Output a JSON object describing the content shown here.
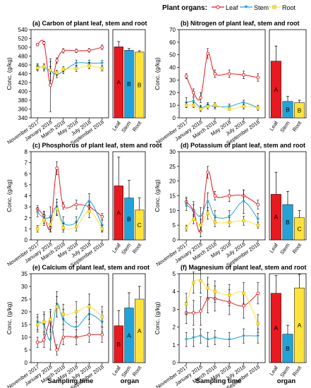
{
  "legend": {
    "title": "Plant organs:",
    "items": [
      {
        "label": "Leaf",
        "color": "#e8191f",
        "marker": "circle"
      },
      {
        "label": "Stem",
        "color": "#21a3d8",
        "marker": "triangle-down"
      },
      {
        "label": "Root",
        "color": "#ffe33a",
        "marker": "square"
      }
    ]
  },
  "colors": {
    "leaf": "#e8191f",
    "stem": "#21a3d8",
    "root": "#ffe33a"
  },
  "shared": {
    "ylabel": "Conc. (g/kg)",
    "dates": [
      "November 2017",
      "January 2018",
      "March 2018",
      "May 2018",
      "July 2018",
      "September 2018"
    ],
    "organs": [
      "Leaf",
      "Stem",
      "Root"
    ],
    "x_months": [
      1,
      2,
      3,
      4,
      5,
      7,
      9,
      11
    ]
  },
  "footer": {
    "left_label": "Sampling time",
    "right_label": "organ"
  },
  "chart_data": [
    {
      "type": "line",
      "title": "(a) Carbon of plant leaf, stem and root",
      "ylim": [
        340,
        540
      ],
      "yticks": [
        340,
        360,
        380,
        400,
        420,
        440,
        460,
        480,
        500,
        520,
        540
      ],
      "series": [
        {
          "name": "Leaf",
          "y": [
            506,
            510,
            414,
            470,
            492,
            492,
            493,
            500
          ],
          "err": [
            3,
            4,
            60,
            6,
            5,
            4,
            4,
            5
          ]
        },
        {
          "name": "Stem",
          "y": [
            456,
            454,
            446,
            438,
            446,
            464,
            464,
            464
          ],
          "err": [
            7,
            8,
            22,
            7,
            6,
            7,
            7,
            6
          ]
        },
        {
          "name": "Root",
          "y": [
            453,
            456,
            448,
            442,
            450,
            452,
            458,
            452
          ],
          "err": [
            7,
            6,
            8,
            6,
            6,
            7,
            7,
            6
          ]
        }
      ],
      "bars": {
        "values": [
          501,
          493,
          489
        ],
        "err": [
          12,
          4,
          3
        ],
        "letters": [
          "A",
          "B",
          "B"
        ]
      }
    },
    {
      "type": "line",
      "title": "(b) Nitrogen of plant leaf, stem and root",
      "ylim": [
        0,
        70
      ],
      "yticks": [
        0,
        10,
        20,
        30,
        40,
        50,
        60,
        70
      ],
      "series": [
        {
          "name": "Leaf",
          "y": [
            33,
            20,
            16,
            51,
            35,
            35,
            34,
            32
          ],
          "err": [
            2,
            3,
            4,
            4,
            3,
            3,
            3,
            3
          ]
        },
        {
          "name": "Stem",
          "y": [
            12,
            13,
            8,
            10,
            9,
            9,
            12,
            8
          ],
          "err": [
            4,
            3,
            2,
            2,
            2,
            2,
            2,
            2
          ]
        },
        {
          "name": "Root",
          "y": [
            10,
            10,
            7,
            9,
            10,
            7,
            9,
            8
          ],
          "err": [
            2,
            2,
            2,
            2,
            2,
            1,
            2,
            1
          ]
        }
      ],
      "bars": {
        "values": [
          45,
          13,
          12
        ],
        "err": [
          12,
          4,
          2
        ],
        "letters": [
          "A",
          "B",
          "B"
        ]
      }
    },
    {
      "type": "line",
      "title": "(c) Phosphorus of plant leaf, stem and root",
      "ylim": [
        0,
        8
      ],
      "yticks": [
        0,
        1,
        2,
        3,
        4,
        5,
        6,
        7,
        8
      ],
      "series": [
        {
          "name": "Leaf",
          "y": [
            2.8,
            2.2,
            1.1,
            6.5,
            3.1,
            3.2,
            3.0,
            2.1
          ],
          "err": [
            0.3,
            0.4,
            0.4,
            0.6,
            0.3,
            0.4,
            0.4,
            0.3
          ]
        },
        {
          "name": "Stem",
          "y": [
            2.5,
            2.0,
            2.1,
            3.0,
            1.5,
            1.6,
            3.5,
            1.3
          ],
          "err": [
            0.4,
            0.5,
            0.9,
            0.7,
            0.6,
            0.5,
            0.7,
            0.5
          ]
        },
        {
          "name": "Root",
          "y": [
            1.0,
            1.8,
            1.4,
            2.8,
            1.1,
            1.2,
            2.6,
            1.0
          ],
          "err": [
            0.3,
            0.5,
            0.6,
            0.6,
            0.4,
            0.4,
            0.6,
            0.3
          ]
        }
      ],
      "bars": {
        "values": [
          4.9,
          3.8,
          2.7
        ],
        "err": [
          2.6,
          1.6,
          1.1
        ],
        "letters": [
          "A",
          "B",
          "C"
        ]
      }
    },
    {
      "type": "line",
      "title": "(d) Potassium of plant leaf, stem and root",
      "ylim": [
        0,
        30
      ],
      "yticks": [
        0,
        5,
        10,
        15,
        20,
        25,
        30
      ],
      "series": [
        {
          "name": "Leaf",
          "y": [
            13,
            10,
            3,
            23,
            15,
            15,
            15,
            12
          ],
          "err": [
            1.5,
            2,
            2,
            2,
            1.5,
            2,
            2,
            1.5
          ]
        },
        {
          "name": "Stem",
          "y": [
            12,
            10,
            8,
            13,
            8,
            8,
            13,
            7
          ],
          "err": [
            2,
            3,
            3,
            3,
            2,
            2,
            4,
            2
          ]
        },
        {
          "name": "Root",
          "y": [
            4,
            7,
            5,
            9,
            6,
            6,
            6.5,
            5
          ],
          "err": [
            1,
            1.5,
            2,
            2,
            1.5,
            1.5,
            1.5,
            1
          ]
        }
      ],
      "bars": {
        "values": [
          15.5,
          12,
          7.5
        ],
        "err": [
          7.5,
          4.5,
          2.5
        ],
        "letters": [
          "A",
          "B",
          "C"
        ]
      }
    },
    {
      "type": "line",
      "title": "(e) Calcium of plant leaf, stem and root",
      "ylim": [
        0,
        35
      ],
      "yticks": [
        0,
        5,
        10,
        15,
        20,
        25,
        30,
        35
      ],
      "series": [
        {
          "name": "Leaf",
          "y": [
            8,
            9,
            16,
            5,
            10,
            10,
            11,
            11
          ],
          "err": [
            2,
            3,
            4,
            2,
            3,
            3,
            3,
            3
          ]
        },
        {
          "name": "Stem",
          "y": [
            16,
            15,
            9,
            23,
            17,
            14,
            19,
            16
          ],
          "err": [
            3,
            4,
            4,
            5,
            4,
            4,
            4,
            4
          ]
        },
        {
          "name": "Root",
          "y": [
            15,
            16,
            17,
            22,
            19,
            20,
            22,
            18
          ],
          "err": [
            3,
            4,
            4,
            4,
            4,
            4,
            5,
            4
          ]
        }
      ],
      "bars": {
        "values": [
          14.5,
          21.5,
          25
        ],
        "err": [
          6,
          6,
          5
        ],
        "letters": [
          "B",
          "A",
          "A"
        ]
      }
    },
    {
      "type": "line",
      "title": "(f) Magnesium of plant leaf, stem and root",
      "ylim": [
        0,
        5
      ],
      "yticks": [
        0,
        1,
        2,
        3,
        4,
        5
      ],
      "series": [
        {
          "name": "Leaf",
          "y": [
            2.8,
            2.8,
            2.9,
            3.6,
            3.6,
            3.4,
            3.2,
            3.9
          ],
          "err": [
            0.6,
            0.7,
            0.8,
            0.8,
            0.7,
            0.7,
            0.7,
            0.6
          ]
        },
        {
          "name": "Stem",
          "y": [
            1.3,
            1.4,
            1.5,
            1.3,
            1.4,
            1.3,
            1.5,
            1.5
          ],
          "err": [
            0.4,
            0.5,
            0.4,
            0.4,
            0.4,
            0.4,
            0.4,
            0.4
          ]
        },
        {
          "name": "Root",
          "y": [
            3.3,
            4.5,
            4.6,
            4.2,
            4.0,
            3.8,
            3.9,
            2.2
          ],
          "err": [
            0.6,
            0.6,
            0.7,
            0.6,
            0.6,
            0.6,
            0.6,
            0.5
          ]
        }
      ],
      "bars": {
        "values": [
          3.9,
          1.6,
          4.2
        ],
        "err": [
          1.0,
          0.5,
          1.3
        ],
        "letters": [
          "A",
          "B",
          "A"
        ]
      }
    }
  ]
}
